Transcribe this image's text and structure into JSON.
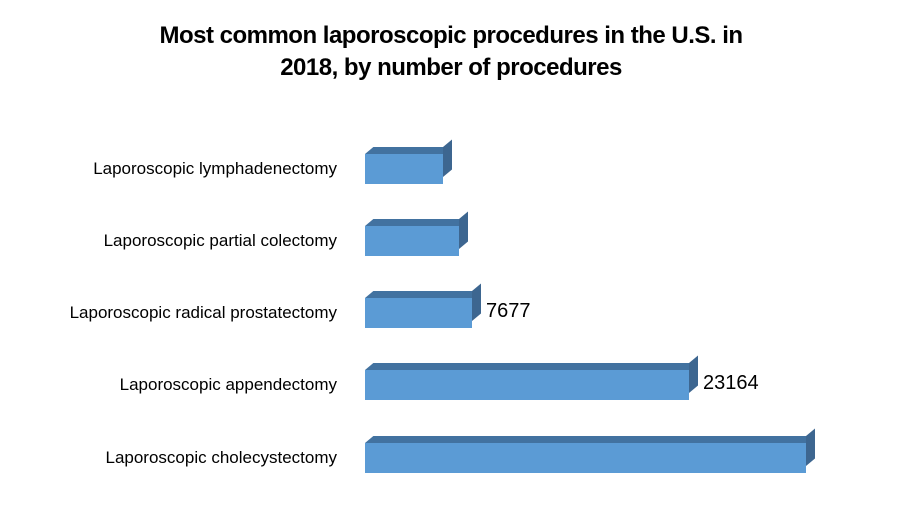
{
  "chart_data": {
    "type": "bar",
    "orientation": "horizontal",
    "style": "3d",
    "title": "Most common laporoscopic procedures in the U.S. in 2018, by number of procedures",
    "title_lines": [
      "Most common laporoscopic procedures in the U.S. in",
      "2018, by number of procedures"
    ],
    "categories": [
      "Laporoscopic lymphadenectomy",
      "Laporoscopic partial colectomy",
      "Laporoscopic radical prostatectomy",
      "Laporoscopic appendectomy",
      "Laporoscopic cholecystectomy"
    ],
    "values": [
      5600,
      6700,
      7677,
      23164,
      31500
    ],
    "data_labels": [
      "",
      "",
      "7677",
      "23164",
      ""
    ],
    "xlabel": "",
    "ylabel": "",
    "grid": false,
    "legend": false,
    "bar_color": "#5b9bd5"
  }
}
